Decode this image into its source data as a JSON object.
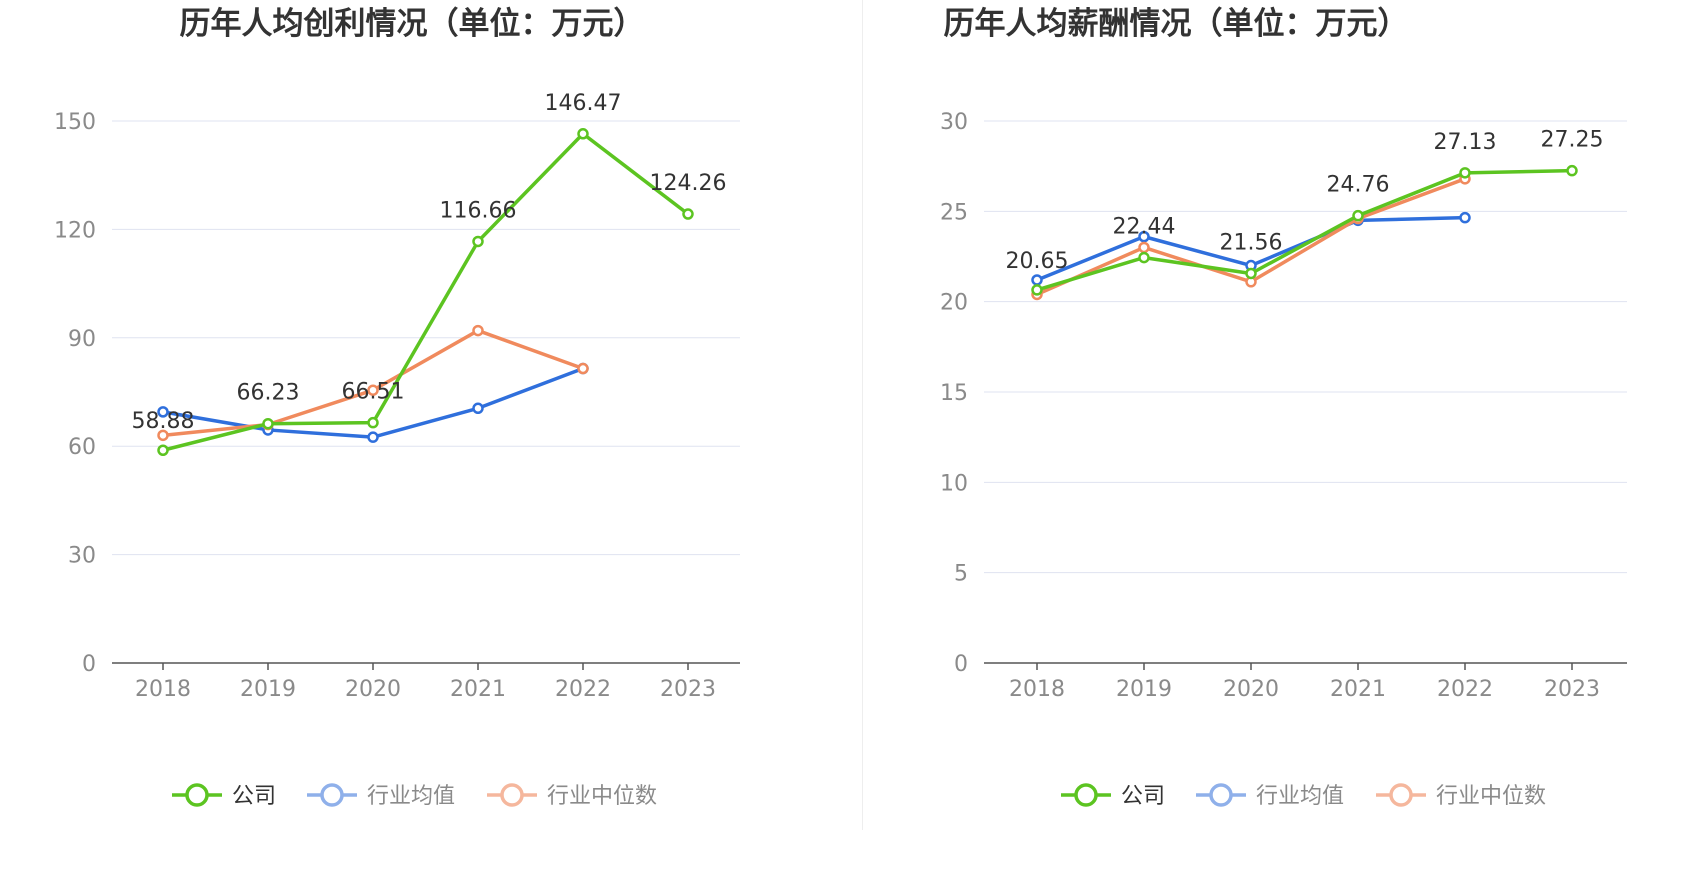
{
  "colors": {
    "company": "#5cc421",
    "industry_avg": "#2f6fdc",
    "industry_median": "#f08a5d",
    "legend_avg": "#8fb0ea",
    "legend_median": "#f5b79d",
    "grid": "#dfe3f0",
    "axis": "#555555"
  },
  "legend": {
    "company": "公司",
    "industry_avg": "行业均值",
    "industry_median": "行业中位数"
  },
  "chart_data": [
    {
      "type": "line",
      "title": "历年人均创利情况（单位：万元）",
      "categories": [
        "2018",
        "2019",
        "2020",
        "2021",
        "2022",
        "2023"
      ],
      "ylim": [
        0,
        150
      ],
      "yticks": [
        "0",
        "30",
        "60",
        "90",
        "120",
        "150"
      ],
      "grid": true,
      "legend_position": "bottom",
      "series": [
        {
          "name": "公司",
          "values": [
            58.88,
            66.23,
            66.51,
            116.66,
            146.47,
            124.26
          ],
          "labels": [
            "58.88",
            "66.23",
            "66.51",
            "116.66",
            "146.47",
            "124.26"
          ]
        },
        {
          "name": "行业均值",
          "values": [
            69.5,
            64.5,
            62.5,
            70.5,
            81.5,
            null
          ]
        },
        {
          "name": "行业中位数",
          "values": [
            63.0,
            66.0,
            75.5,
            92.0,
            81.5,
            null
          ]
        }
      ]
    },
    {
      "type": "line",
      "title": "历年人均薪酬情况（单位：万元）",
      "categories": [
        "2018",
        "2019",
        "2020",
        "2021",
        "2022",
        "2023"
      ],
      "ylim": [
        0,
        30
      ],
      "yticks": [
        "0",
        "5",
        "10",
        "15",
        "20",
        "25",
        "30"
      ],
      "grid": true,
      "legend_position": "bottom",
      "series": [
        {
          "name": "公司",
          "values": [
            20.65,
            22.44,
            21.56,
            24.76,
            27.13,
            27.25
          ],
          "labels": [
            "20.65",
            "22.44",
            "21.56",
            "24.76",
            "27.13",
            "27.25"
          ]
        },
        {
          "name": "行业均值",
          "values": [
            21.2,
            23.6,
            22.0,
            24.5,
            24.65,
            null
          ]
        },
        {
          "name": "行业中位数",
          "values": [
            20.4,
            23.0,
            21.1,
            24.6,
            26.8,
            null
          ]
        }
      ]
    }
  ]
}
